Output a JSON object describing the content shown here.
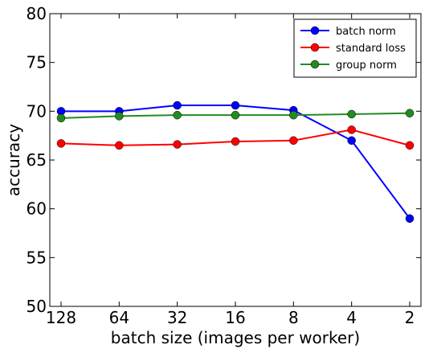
{
  "chart_data": {
    "type": "line",
    "xlabel": "batch size (images per worker)",
    "ylabel": "accuracy",
    "categories": [
      "128",
      "64",
      "32",
      "16",
      "8",
      "4",
      "2"
    ],
    "ylim": [
      50,
      80
    ],
    "yticks": [
      50,
      55,
      60,
      65,
      70,
      75,
      80
    ],
    "grid": false,
    "legend_position": "top-right",
    "series": [
      {
        "name": "batch norm",
        "color": "#0000ff",
        "values": [
          70.0,
          70.0,
          70.6,
          70.6,
          70.1,
          67.0,
          59.0
        ]
      },
      {
        "name": "standard loss",
        "color": "#ff0000",
        "values": [
          66.7,
          66.5,
          66.6,
          66.9,
          67.0,
          68.1,
          66.5
        ]
      },
      {
        "name": "group norm",
        "color": "#228b22",
        "values": [
          69.3,
          69.5,
          69.6,
          69.6,
          69.6,
          69.7,
          69.8
        ]
      }
    ]
  }
}
